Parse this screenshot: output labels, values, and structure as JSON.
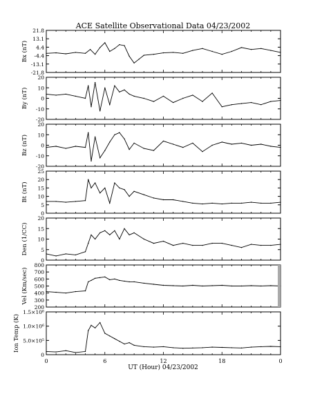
{
  "title": "ACE Satellite Observational Data   04/23/2002",
  "xlabel": "UT (Hour)   04/23/2002",
  "x_ticks": [
    "0",
    "6",
    "12",
    "18",
    "0"
  ],
  "colors": {
    "line": "#000000",
    "background": "#ffffff",
    "gap_fill": "#aaaaaa"
  },
  "chart_data": [
    {
      "type": "line",
      "ylabel": "Bx (nT)",
      "ylim": [
        -21.8,
        21.8
      ],
      "yticks": [
        "-21.8",
        "-13.1",
        "-4.4",
        "4.4",
        "13.1",
        "21.8"
      ],
      "x": [
        0,
        1,
        2,
        3,
        4,
        4.5,
        5,
        5.5,
        6,
        6.5,
        7,
        7.5,
        8,
        8.5,
        9,
        9.5,
        10,
        11,
        12,
        13,
        14,
        15,
        16,
        17,
        18,
        19,
        20,
        21,
        22,
        23,
        24
      ],
      "y": [
        -2,
        -1.5,
        -2.5,
        -1,
        -2,
        2,
        -3,
        4,
        9,
        0,
        3,
        7,
        6,
        -5,
        -12,
        -8,
        -4,
        -3,
        -1.5,
        -1,
        -2,
        1,
        3,
        0,
        -3,
        0,
        4,
        2,
        3,
        1,
        -1
      ]
    },
    {
      "type": "line",
      "ylabel": "By (nT)",
      "ylim": [
        -20,
        20
      ],
      "yticks": [
        "-20",
        "-10",
        "0",
        "10",
        "20"
      ],
      "x": [
        0,
        1,
        2,
        3,
        4,
        4.3,
        4.6,
        5,
        5.5,
        6,
        6.5,
        7,
        7.5,
        8,
        8.5,
        9,
        10,
        11,
        12,
        13,
        14,
        15,
        16,
        17,
        18,
        19,
        20,
        21,
        22,
        23,
        24
      ],
      "y": [
        4,
        3,
        4,
        2,
        0,
        12,
        -8,
        15,
        -12,
        10,
        -6,
        12,
        6,
        8,
        4,
        2,
        0,
        -3,
        2,
        -4,
        0,
        3,
        -3,
        5,
        -8,
        -6,
        -5,
        -4,
        -6,
        -3,
        -2
      ]
    },
    {
      "type": "line",
      "ylabel": "Bz (nT)",
      "ylim": [
        -20,
        20
      ],
      "yticks": [
        "-20",
        "-10",
        "0",
        "10",
        "20"
      ],
      "x": [
        0,
        1,
        2,
        3,
        4,
        4.3,
        4.6,
        5,
        5.5,
        6,
        6.5,
        7,
        7.5,
        8,
        8.5,
        9,
        10,
        11,
        12,
        13,
        14,
        15,
        16,
        17,
        18,
        19,
        20,
        21,
        22,
        23,
        24
      ],
      "y": [
        -2,
        -1,
        -3,
        -1,
        -2,
        12,
        -15,
        8,
        -12,
        -5,
        3,
        10,
        12,
        6,
        -4,
        2,
        -3,
        -5,
        4,
        1,
        -2,
        2,
        -6,
        0,
        3,
        1,
        2,
        0,
        1,
        -1,
        -2
      ]
    },
    {
      "type": "line",
      "ylabel": "Bt (nT)",
      "ylim": [
        0,
        25
      ],
      "yticks": [
        "0",
        "5",
        "10",
        "15",
        "20",
        "25"
      ],
      "x": [
        0,
        1,
        2,
        3,
        4,
        4.3,
        4.6,
        5,
        5.5,
        6,
        6.5,
        7,
        7.5,
        8,
        8.5,
        9,
        10,
        11,
        12,
        13,
        14,
        15,
        16,
        17,
        18,
        19,
        20,
        21,
        22,
        23,
        24
      ],
      "y": [
        7,
        7,
        6.5,
        7,
        7.5,
        20,
        15,
        18,
        12,
        15,
        6,
        18,
        15,
        14,
        10,
        13,
        11,
        9,
        8,
        8,
        7,
        6,
        5.5,
        6,
        5.5,
        6,
        6,
        6.5,
        6,
        6,
        6.5
      ]
    },
    {
      "type": "line",
      "ylabel": "Den (1/CC)",
      "ylim": [
        0,
        20
      ],
      "yticks": [
        "0",
        "5",
        "10",
        "15",
        "20"
      ],
      "x": [
        0,
        1,
        2,
        3,
        4,
        4.3,
        4.6,
        5,
        5.5,
        6,
        6.5,
        7,
        7.5,
        8,
        8.5,
        9,
        10,
        11,
        12,
        13,
        14,
        15,
        16,
        17,
        18,
        19,
        20,
        21,
        22,
        23,
        24
      ],
      "y": [
        3,
        2,
        3,
        2.5,
        4,
        8,
        12,
        10,
        13,
        14,
        12,
        14,
        10,
        15,
        12,
        13,
        10,
        8,
        9,
        7,
        8,
        7,
        7,
        8,
        8,
        7,
        6,
        7.5,
        7,
        7,
        7.5
      ]
    },
    {
      "type": "line",
      "ylabel": "Vel (Km/sec)",
      "ylim": [
        200,
        800
      ],
      "yticks": [
        "200",
        "300",
        "400",
        "500",
        "600",
        "700",
        "800"
      ],
      "x": [
        0,
        1,
        2,
        3,
        4,
        4.3,
        4.6,
        5,
        5.5,
        6,
        6.5,
        7,
        7.5,
        8,
        8.5,
        9,
        10,
        11,
        12,
        13,
        14,
        15,
        16,
        17,
        18,
        19,
        20,
        21,
        22,
        23,
        24
      ],
      "y": [
        420,
        410,
        400,
        420,
        430,
        560,
        580,
        610,
        620,
        630,
        590,
        600,
        580,
        570,
        560,
        560,
        540,
        525,
        510,
        505,
        500,
        510,
        500,
        505,
        510,
        500,
        500,
        505,
        500,
        505,
        500
      ]
    },
    {
      "type": "line",
      "ylabel": "Ion Temp (K)",
      "ylim": [
        0,
        1600000
      ],
      "yticks": [
        "0",
        "5.0×10⁵",
        "1.0×10⁶",
        "1.5×10⁶"
      ],
      "x": [
        0,
        1,
        2,
        3,
        4,
        4.3,
        4.6,
        5,
        5.5,
        6,
        6.5,
        7,
        7.5,
        8,
        8.5,
        9,
        10,
        11,
        12,
        13,
        14,
        15,
        16,
        17,
        18,
        19,
        20,
        21,
        22,
        23,
        24
      ],
      "y": [
        120000,
        100000,
        150000,
        80000,
        120000,
        900000,
        1100000,
        1000000,
        1200000,
        800000,
        700000,
        600000,
        500000,
        400000,
        450000,
        350000,
        300000,
        280000,
        300000,
        260000,
        240000,
        250000,
        260000,
        280000,
        270000,
        260000,
        250000,
        280000,
        300000,
        310000,
        300000
      ]
    }
  ]
}
